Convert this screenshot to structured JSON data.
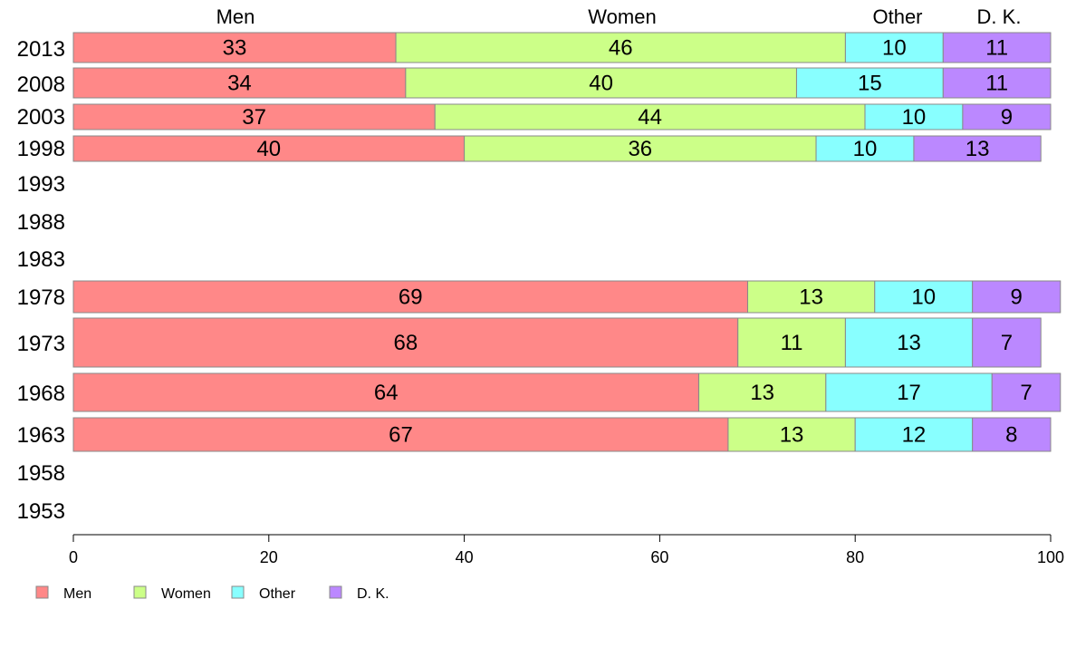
{
  "chart_data": {
    "type": "bar",
    "orientation": "horizontal",
    "stacked": true,
    "xlim": [
      0,
      100
    ],
    "xticks": [
      0,
      20,
      40,
      60,
      80,
      100
    ],
    "grid": false,
    "legend_position": "bottom-left",
    "colors": {
      "Men": "#ff8888",
      "Women": "#ccff88",
      "Other": "#88ffff",
      "D. K.": "#bb88ff"
    },
    "series_names": [
      "Men",
      "Women",
      "Other",
      "D. K."
    ],
    "header_labels": [
      "Men",
      "Women",
      "Other",
      "D. K."
    ],
    "rows": [
      {
        "year": "2013",
        "values": [
          33,
          46,
          10,
          11
        ]
      },
      {
        "year": "2008",
        "values": [
          34,
          40,
          15,
          11
        ]
      },
      {
        "year": "2003",
        "values": [
          37,
          44,
          10,
          9
        ]
      },
      {
        "year": "1998",
        "values": [
          40,
          36,
          10,
          13
        ]
      },
      {
        "year": "1993",
        "values": null
      },
      {
        "year": "1988",
        "values": null
      },
      {
        "year": "1983",
        "values": null
      },
      {
        "year": "1978",
        "values": [
          69,
          13,
          10,
          9
        ]
      },
      {
        "year": "1973",
        "values": [
          68,
          11,
          13,
          7
        ]
      },
      {
        "year": "1968",
        "values": [
          64,
          13,
          17,
          7
        ]
      },
      {
        "year": "1963",
        "values": [
          67,
          13,
          12,
          8
        ]
      },
      {
        "year": "1958",
        "values": null
      },
      {
        "year": "1953",
        "values": null
      }
    ]
  }
}
